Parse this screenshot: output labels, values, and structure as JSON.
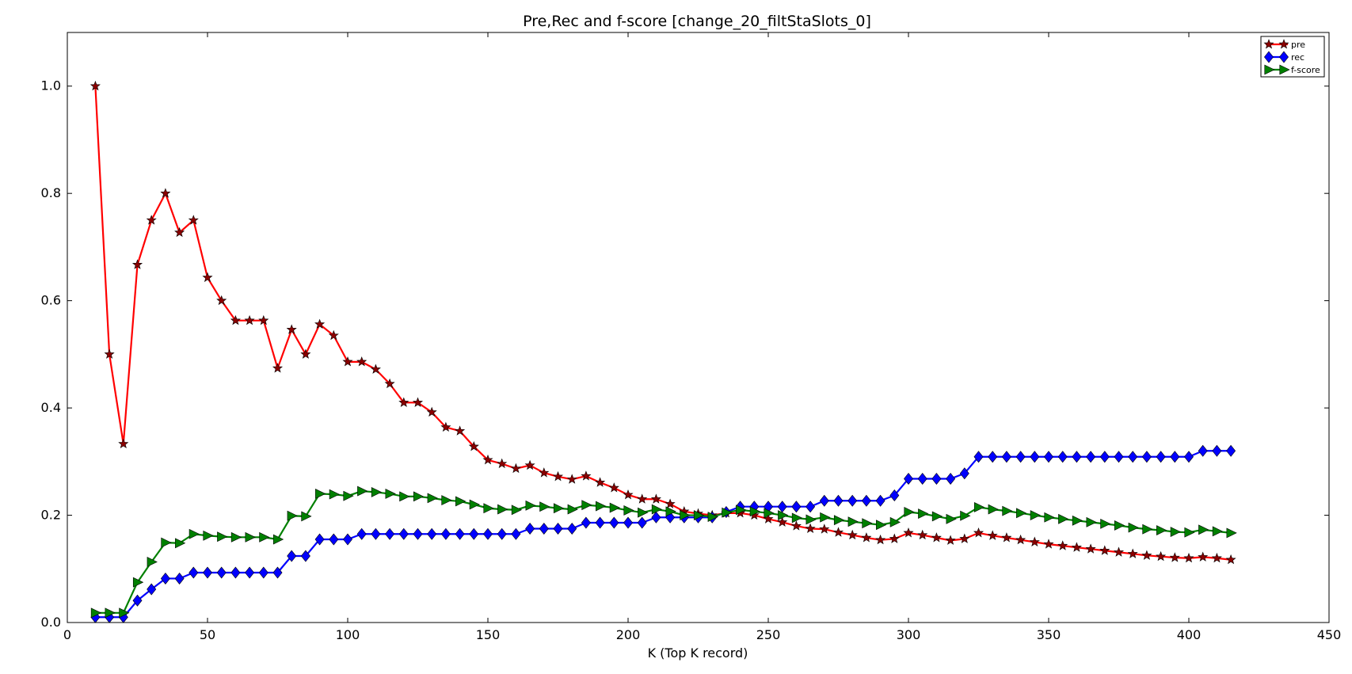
{
  "chart_data": {
    "type": "line",
    "title": "Pre,Rec and f-score [change_20_filtStaSlots_0]",
    "xlabel": "K (Top K record)",
    "ylabel": "",
    "xlim": [
      0,
      450
    ],
    "ylim": [
      0.0,
      1.1
    ],
    "xticks": [
      0,
      50,
      100,
      150,
      200,
      250,
      300,
      350,
      400,
      450
    ],
    "xtick_labels": [
      "0",
      "50",
      "100",
      "150",
      "200",
      "250",
      "300",
      "350",
      "400",
      "450"
    ],
    "yticks": [
      0.0,
      0.2,
      0.4,
      0.6,
      0.8,
      1.0
    ],
    "ytick_labels": [
      "0.0",
      "0.2",
      "0.4",
      "0.6",
      "0.8",
      "1.0"
    ],
    "grid": false,
    "legend_position": "top-right",
    "x": [
      10,
      15,
      20,
      25,
      30,
      35,
      40,
      45,
      50,
      55,
      60,
      65,
      70,
      75,
      80,
      85,
      90,
      95,
      100,
      105,
      110,
      115,
      120,
      125,
      130,
      135,
      140,
      145,
      150,
      155,
      160,
      165,
      170,
      175,
      180,
      185,
      190,
      195,
      200,
      205,
      210,
      215,
      220,
      225,
      230,
      235,
      240,
      245,
      250,
      255,
      260,
      265,
      270,
      275,
      280,
      285,
      290,
      295,
      300,
      305,
      310,
      315,
      320,
      325,
      330,
      335,
      340,
      345,
      350,
      355,
      360,
      365,
      370,
      375,
      380,
      385,
      390,
      395,
      400,
      405,
      410,
      415
    ],
    "series": [
      {
        "name": "pre",
        "color": "#ff0000",
        "marker": "star",
        "values": [
          1.0,
          0.5,
          0.333,
          0.667,
          0.75,
          0.8,
          0.727,
          0.75,
          0.643,
          0.6,
          0.563,
          0.563,
          0.563,
          0.474,
          0.546,
          0.5,
          0.556,
          0.535,
          0.486,
          0.486,
          0.472,
          0.445,
          0.41,
          0.41,
          0.392,
          0.364,
          0.357,
          0.328,
          0.303,
          0.296,
          0.287,
          0.293,
          0.279,
          0.272,
          0.267,
          0.273,
          0.261,
          0.251,
          0.238,
          0.23,
          0.23,
          0.221,
          0.207,
          0.203,
          0.2,
          0.204,
          0.204,
          0.2,
          0.193,
          0.187,
          0.18,
          0.175,
          0.174,
          0.168,
          0.163,
          0.158,
          0.154,
          0.156,
          0.167,
          0.163,
          0.158,
          0.153,
          0.156,
          0.167,
          0.162,
          0.158,
          0.154,
          0.15,
          0.146,
          0.143,
          0.14,
          0.137,
          0.134,
          0.131,
          0.128,
          0.125,
          0.123,
          0.121,
          0.12,
          0.122,
          0.12,
          0.117
        ]
      },
      {
        "name": "rec",
        "color": "#0000ff",
        "marker": "diamond",
        "values": [
          0.01,
          0.01,
          0.01,
          0.041,
          0.062,
          0.082,
          0.082,
          0.093,
          0.093,
          0.093,
          0.093,
          0.093,
          0.093,
          0.093,
          0.124,
          0.124,
          0.155,
          0.155,
          0.155,
          0.165,
          0.165,
          0.165,
          0.165,
          0.165,
          0.165,
          0.165,
          0.165,
          0.165,
          0.165,
          0.165,
          0.165,
          0.175,
          0.175,
          0.175,
          0.175,
          0.186,
          0.186,
          0.186,
          0.186,
          0.186,
          0.196,
          0.196,
          0.196,
          0.196,
          0.196,
          0.206,
          0.216,
          0.216,
          0.216,
          0.216,
          0.216,
          0.216,
          0.227,
          0.227,
          0.227,
          0.227,
          0.227,
          0.237,
          0.268,
          0.268,
          0.268,
          0.268,
          0.278,
          0.309,
          0.309,
          0.309,
          0.309,
          0.309,
          0.309,
          0.309,
          0.309,
          0.309,
          0.309,
          0.309,
          0.309,
          0.309,
          0.309,
          0.309,
          0.309,
          0.32,
          0.32,
          0.32
        ]
      },
      {
        "name": "f-score",
        "color": "#008000",
        "marker": "triangle-right",
        "values": [
          0.018,
          0.018,
          0.018,
          0.075,
          0.113,
          0.149,
          0.148,
          0.165,
          0.162,
          0.16,
          0.159,
          0.159,
          0.159,
          0.155,
          0.199,
          0.198,
          0.24,
          0.239,
          0.236,
          0.245,
          0.243,
          0.24,
          0.235,
          0.235,
          0.232,
          0.228,
          0.226,
          0.22,
          0.213,
          0.211,
          0.21,
          0.218,
          0.216,
          0.213,
          0.211,
          0.219,
          0.217,
          0.214,
          0.209,
          0.205,
          0.211,
          0.207,
          0.2,
          0.2,
          0.197,
          0.205,
          0.21,
          0.207,
          0.204,
          0.2,
          0.195,
          0.192,
          0.196,
          0.191,
          0.188,
          0.185,
          0.182,
          0.187,
          0.206,
          0.203,
          0.198,
          0.193,
          0.199,
          0.215,
          0.211,
          0.208,
          0.204,
          0.2,
          0.196,
          0.193,
          0.19,
          0.187,
          0.184,
          0.181,
          0.177,
          0.174,
          0.172,
          0.169,
          0.168,
          0.173,
          0.17,
          0.167
        ]
      }
    ]
  }
}
